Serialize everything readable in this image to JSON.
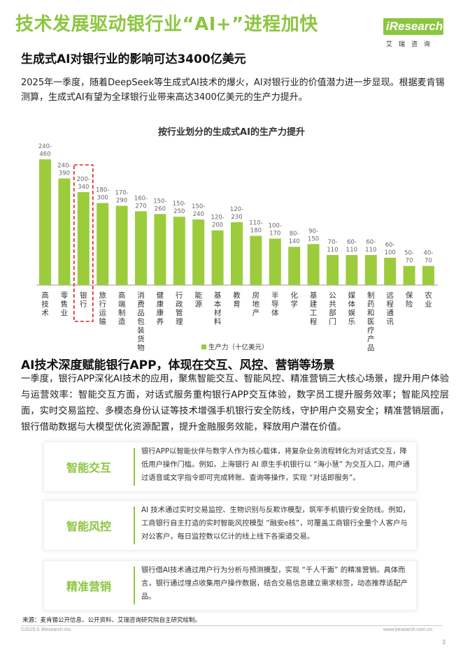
{
  "header": {
    "title": "技术发展驱动银行业“AI+”进程加快",
    "logo_text": "iResearch",
    "logo_sub": "艾瑞咨询"
  },
  "section1": {
    "heading": "生成式AI对银行业的影响可达3400亿美元",
    "paragraph": "2025年一季度，随着DeepSeek等生成式AI技术的爆火，AI对银行业的价值潜力进一步显现。根据麦肯锡测算，生成式AI有望为全球银行业带来高达3400亿美元的生产力提升。"
  },
  "chart_data": {
    "type": "bar",
    "title": "按行业划分的生成式AI的生产力提升",
    "categories": [
      "高技术",
      "零售业",
      "银行",
      "旅行运输",
      "高端制造",
      "消费品包装货物",
      "健康康养",
      "行政管理",
      "能源",
      "基本材料",
      "教育",
      "房地产",
      "半导体",
      "化学",
      "基建工程",
      "公共部门",
      "媒体娱乐",
      "制药和医疗产品",
      "远程通讯",
      "保险",
      "农业"
    ],
    "range_labels": [
      "240-460",
      "240-390",
      "200-340",
      "180-300",
      "170-290",
      "160-270",
      "150-260",
      "150-250",
      "150-240",
      "120-200",
      "120-230",
      "110-180",
      "100-170",
      "80-140",
      "90-150",
      "70-110",
      "60-110",
      "60-110",
      "60-100",
      "50-70",
      "40-70"
    ],
    "low": [
      240,
      240,
      200,
      180,
      170,
      160,
      150,
      150,
      150,
      120,
      120,
      110,
      100,
      80,
      90,
      70,
      60,
      60,
      60,
      50,
      40
    ],
    "high": [
      460,
      390,
      340,
      300,
      290,
      270,
      260,
      250,
      240,
      200,
      230,
      180,
      170,
      140,
      150,
      110,
      110,
      110,
      100,
      70,
      70
    ],
    "series": [
      {
        "name": "生产力（十亿美元）",
        "color": "#9ccc3c"
      }
    ],
    "highlight_category": "银行",
    "highlight_color": "#e02020",
    "legend_position": "bottom",
    "grid": false
  },
  "section2": {
    "heading": "AI技术深度赋能银行APP，体现在交互、风控、营销等场景",
    "paragraph": "一季度，银行APP深化AI技术的应用，聚焦智能交互、智能风控、精准营销三大核心场景，提升用户体验与运营效率：智能交互方面，对话式服务重构银行APP交互体验，数字员工提升服务效率；智能风控层面，实时交易监控、多模态身份认证等技术增强手机银行安全防线，守护用户交易安全；精准营销层面，银行借助数据与大模型优化资源配置，提升金融服务效能，释放用户潜在价值。"
  },
  "cards": [
    {
      "label": "智能交互",
      "text": "银行APP以智能伙伴与数字人作为核心载体，将复杂业务流程转化为对话式交互，降低用户操作门槛。例如，上海银行 AI 原生手机银行以 “海小慧” 为交互入口，用户通过语音或文字指令即可完成转账、查询等操作，实现 “对话即服务”。"
    },
    {
      "label": "智能风控",
      "text": "AI 技术通过实时交易监控、生物识别与反欺诈模型，筑牢手机银行安全防线。例如，工商银行自主打造的实时智能风控模型 “融安e核”，可覆盖工商银行全量个人客户与对公客户，每日监控数以亿计的线上线下各渠道交易。"
    },
    {
      "label": "精准营销",
      "text": "银行借AI技术通过用户行为分析与预测模型，实现 “千人千面” 的精准营销。具体而言，银行通过埋点收集用户操作数据，结合交易信息建立需求标签，动态推荐适配产品。"
    }
  ],
  "footer": {
    "source": "来源：麦肯锡公开信息、公开资料、艾瑞咨询研究院自主研究绘制。",
    "copyright": "©2025.5 iResearch Inc.",
    "website": "www.iresearch.com.cn",
    "page_number": "3"
  },
  "colors": {
    "accent": "#8cc63f",
    "bar": "#9ccc3c",
    "highlight": "#e02020"
  }
}
